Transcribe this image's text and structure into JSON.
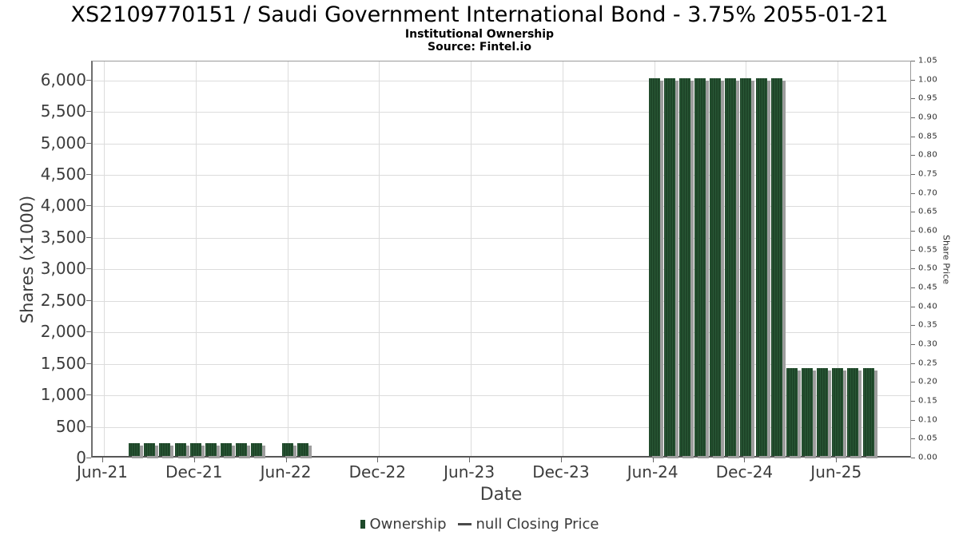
{
  "title": "XS2109770151 / Saudi Government International Bond - 3.75% 2055-01-21",
  "subtitle": "Institutional Ownership",
  "source": "Source: Fintel.io",
  "legend": {
    "ownership_label": "Ownership",
    "price_label": "null Closing Price"
  },
  "chart_data": {
    "type": "bar",
    "title": "XS2109770151 / Saudi Government International Bond - 3.75% 2055-01-21",
    "subtitle": "Institutional Ownership",
    "source": "Source: Fintel.io",
    "xlabel": "Date",
    "ylabel_left": "Shares (x1000)",
    "ylabel_right": "Share Price",
    "grid": true,
    "legend_position": "bottom-center",
    "colors": {
      "bar_base": "#1e4a2a",
      "bar_stripe_dark": "#16381f",
      "bar_stripe_light": "#2d5f3a",
      "bar_shadow": "#9d9d9d",
      "gridline": "#dcdcdc",
      "axis_text": "#3c3c3c"
    },
    "x_range_months_after_jun21": [
      -0.73,
      52.9
    ],
    "x_ticks": [
      {
        "label": "Jun-21",
        "month": 0
      },
      {
        "label": "Dec-21",
        "month": 6
      },
      {
        "label": "Jun-22",
        "month": 12
      },
      {
        "label": "Dec-22",
        "month": 18
      },
      {
        "label": "Jun-23",
        "month": 24
      },
      {
        "label": "Dec-23",
        "month": 30
      },
      {
        "label": "Jun-24",
        "month": 36
      },
      {
        "label": "Dec-24",
        "month": 42
      },
      {
        "label": "Jun-25",
        "month": 48
      }
    ],
    "y_left": {
      "min": 0,
      "max": 6300,
      "step": 500,
      "tick_values": [
        0,
        500,
        1000,
        1500,
        2000,
        2500,
        3000,
        3500,
        4000,
        4500,
        5000,
        5500,
        6000
      ],
      "tick_labels": [
        "0",
        "500",
        "1,000",
        "1,500",
        "2,000",
        "2,500",
        "3,000",
        "3,500",
        "4,000",
        "4,500",
        "5,000",
        "5,500",
        "6,000"
      ]
    },
    "y_right": {
      "min": 0,
      "max": 1.05,
      "step": 0.05,
      "tick_labels": [
        "0.00",
        "0.05",
        "0.10",
        "0.15",
        "0.20",
        "0.25",
        "0.30",
        "0.35",
        "0.40",
        "0.45",
        "0.50",
        "0.55",
        "0.60",
        "0.65",
        "0.70",
        "0.75",
        "0.80",
        "0.85",
        "0.90",
        "0.95",
        "1.00",
        "1.05"
      ]
    },
    "series": [
      {
        "name": "Ownership",
        "type": "bar",
        "points": [
          {
            "date": "Aug-21",
            "month": 2,
            "shares_k": 200
          },
          {
            "date": "Sep-21",
            "month": 3,
            "shares_k": 200
          },
          {
            "date": "Oct-21",
            "month": 4,
            "shares_k": 200
          },
          {
            "date": "Nov-21",
            "month": 5,
            "shares_k": 200
          },
          {
            "date": "Dec-21",
            "month": 6,
            "shares_k": 200
          },
          {
            "date": "Jan-22",
            "month": 7,
            "shares_k": 200
          },
          {
            "date": "Feb-22",
            "month": 8,
            "shares_k": 200
          },
          {
            "date": "Mar-22",
            "month": 9,
            "shares_k": 200
          },
          {
            "date": "Apr-22",
            "month": 10,
            "shares_k": 200
          },
          {
            "date": "Jun-22",
            "month": 12,
            "shares_k": 200
          },
          {
            "date": "Jul-22",
            "month": 13,
            "shares_k": 200
          },
          {
            "date": "Jun-24",
            "month": 36,
            "shares_k": 6000
          },
          {
            "date": "Jul-24",
            "month": 37,
            "shares_k": 6000
          },
          {
            "date": "Aug-24",
            "month": 38,
            "shares_k": 6000
          },
          {
            "date": "Sep-24",
            "month": 39,
            "shares_k": 6000
          },
          {
            "date": "Oct-24",
            "month": 40,
            "shares_k": 6000
          },
          {
            "date": "Nov-24",
            "month": 41,
            "shares_k": 6000
          },
          {
            "date": "Dec-24",
            "month": 42,
            "shares_k": 6000
          },
          {
            "date": "Jan-25",
            "month": 43,
            "shares_k": 6000
          },
          {
            "date": "Feb-25",
            "month": 44,
            "shares_k": 6000
          },
          {
            "date": "Mar-25",
            "month": 45,
            "shares_k": 1400
          },
          {
            "date": "Apr-25",
            "month": 46,
            "shares_k": 1400
          },
          {
            "date": "May-25",
            "month": 47,
            "shares_k": 1400
          },
          {
            "date": "Jun-25",
            "month": 48,
            "shares_k": 1400
          },
          {
            "date": "Jul-25",
            "month": 49,
            "shares_k": 1400
          },
          {
            "date": "Aug-25",
            "month": 50,
            "shares_k": 1400
          }
        ]
      },
      {
        "name": "null Closing Price",
        "type": "line",
        "points": []
      }
    ]
  }
}
